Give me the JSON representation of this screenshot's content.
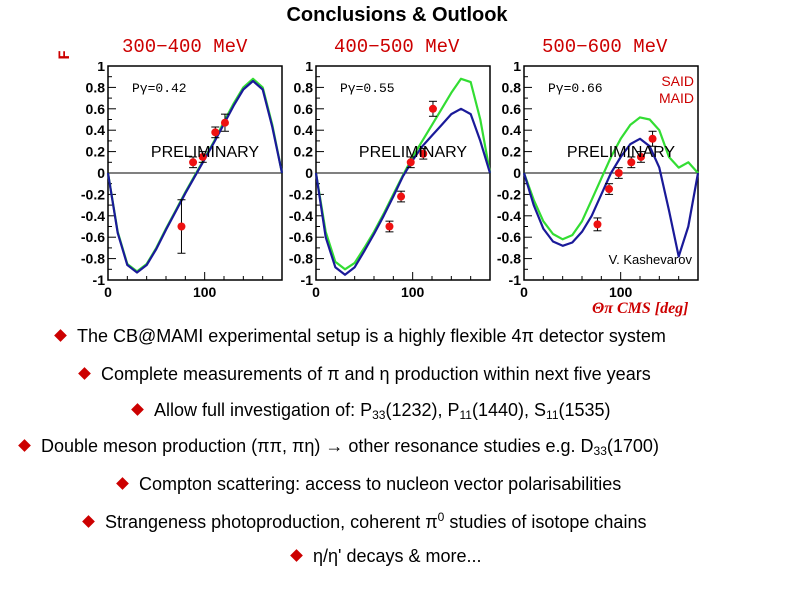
{
  "slide": {
    "title": "Conclusions & Outlook",
    "y_axis_letter": "F",
    "x_axis_title": "Θπ CMS [deg]",
    "panels": [
      {
        "title": "300−400 MeV",
        "p_label": "Pγ=0.42",
        "watermark": "PRELIMINARY"
      },
      {
        "title": "400−500 MeV",
        "p_label": "Pγ=0.55",
        "watermark": "PRELIMINARY"
      },
      {
        "title": "500−600 MeV",
        "p_label": "Pγ=0.66",
        "watermark": "PRELIMINARY"
      }
    ],
    "legend": {
      "said": "SAID",
      "maid": "MAID"
    },
    "credit": "V. Kashevarov",
    "bullets": {
      "b1": "The CB@MAMI experimental setup is a highly flexible 4π detector system",
      "b2": "Complete measurements of π and η production within next five years",
      "b3_pre": "Allow full investigation of: P",
      "b3_s1": "33",
      "b3_m1": "(1232), P",
      "b3_s2": "11",
      "b3_m2": "(1440), S",
      "b3_s3": "11",
      "b3_post": "(1535)",
      "b4_pre": "Double meson production (ππ, πη) → other resonance studies e.g. D",
      "b4_sub": "33",
      "b4_post": "(1700)",
      "b5": "Compton scattering: access to nucleon vector polarisabilities",
      "b6_pre": "Strangeness photoproduction, coherent π",
      "b6_sup": "0",
      "b6_post": " studies of isotope chains",
      "b7": "η/η' decays & more..."
    },
    "colors": {
      "accent": "#cc0000",
      "said": "#33dd33",
      "maid": "#1a1a99",
      "points": "#ee1111"
    }
  },
  "chart_data": [
    {
      "type": "line",
      "title": "300−400 MeV",
      "ylabel": "F",
      "xlim": [
        0,
        180
      ],
      "ylim": [
        -1,
        1
      ],
      "xticks": [
        0,
        100
      ],
      "yticks": [
        -1,
        -0.8,
        -0.6,
        -0.4,
        -0.2,
        0,
        0.2,
        0.4,
        0.6,
        0.8,
        1
      ],
      "series": [
        {
          "name": "SAID",
          "x": [
            0,
            10,
            20,
            30,
            40,
            50,
            60,
            70,
            80,
            90,
            100,
            110,
            120,
            130,
            140,
            150,
            160,
            170,
            180
          ],
          "y": [
            0,
            -0.55,
            -0.85,
            -0.92,
            -0.85,
            -0.7,
            -0.52,
            -0.35,
            -0.18,
            -0.02,
            0.14,
            0.3,
            0.48,
            0.65,
            0.8,
            0.88,
            0.8,
            0.45,
            0
          ]
        },
        {
          "name": "MAID",
          "x": [
            0,
            10,
            20,
            30,
            40,
            50,
            60,
            70,
            80,
            90,
            100,
            110,
            120,
            130,
            140,
            150,
            160,
            170,
            180
          ],
          "y": [
            0,
            -0.56,
            -0.86,
            -0.93,
            -0.86,
            -0.71,
            -0.53,
            -0.36,
            -0.19,
            -0.03,
            0.13,
            0.29,
            0.46,
            0.63,
            0.78,
            0.86,
            0.78,
            0.43,
            0
          ]
        },
        {
          "name": "data",
          "x": [
            76,
            88,
            98,
            111,
            121
          ],
          "y": [
            -0.5,
            0.1,
            0.15,
            0.38,
            0.47
          ],
          "err": [
            0.25,
            0.05,
            0.05,
            0.05,
            0.08
          ]
        }
      ]
    },
    {
      "type": "line",
      "title": "400−500 MeV",
      "ylabel": "F",
      "xlim": [
        0,
        180
      ],
      "ylim": [
        -1,
        1
      ],
      "xticks": [
        0,
        100
      ],
      "yticks": [
        -1,
        -0.8,
        -0.6,
        -0.4,
        -0.2,
        0,
        0.2,
        0.4,
        0.6,
        0.8,
        1
      ],
      "series": [
        {
          "name": "SAID",
          "x": [
            0,
            10,
            20,
            30,
            40,
            50,
            60,
            70,
            80,
            90,
            100,
            110,
            120,
            130,
            140,
            150,
            160,
            170,
            180
          ],
          "y": [
            0,
            -0.55,
            -0.83,
            -0.9,
            -0.84,
            -0.7,
            -0.55,
            -0.38,
            -0.2,
            -0.02,
            0.15,
            0.3,
            0.45,
            0.6,
            0.75,
            0.88,
            0.85,
            0.5,
            0
          ]
        },
        {
          "name": "MAID",
          "x": [
            0,
            10,
            20,
            30,
            40,
            50,
            60,
            70,
            80,
            90,
            100,
            110,
            120,
            130,
            140,
            150,
            160,
            170,
            180
          ],
          "y": [
            0,
            -0.6,
            -0.88,
            -0.95,
            -0.88,
            -0.73,
            -0.57,
            -0.4,
            -0.22,
            -0.03,
            0.12,
            0.25,
            0.35,
            0.45,
            0.55,
            0.6,
            0.55,
            0.3,
            0
          ]
        },
        {
          "name": "data",
          "x": [
            76,
            88,
            98,
            111,
            121
          ],
          "y": [
            -0.5,
            -0.22,
            0.1,
            0.18,
            0.6
          ],
          "err": [
            0.05,
            0.05,
            0.05,
            0.05,
            0.07
          ]
        }
      ]
    },
    {
      "type": "line",
      "title": "500−600 MeV",
      "ylabel": "F",
      "xlim": [
        0,
        180
      ],
      "ylim": [
        -1,
        1
      ],
      "xticks": [
        0,
        100
      ],
      "yticks": [
        -1,
        -0.8,
        -0.6,
        -0.4,
        -0.2,
        0,
        0.2,
        0.4,
        0.6,
        0.8,
        1
      ],
      "series": [
        {
          "name": "SAID",
          "x": [
            0,
            10,
            20,
            30,
            40,
            50,
            60,
            70,
            80,
            90,
            100,
            110,
            120,
            130,
            140,
            150,
            160,
            170,
            180
          ],
          "y": [
            0,
            -0.25,
            -0.45,
            -0.57,
            -0.62,
            -0.58,
            -0.45,
            -0.25,
            -0.05,
            0.15,
            0.32,
            0.45,
            0.52,
            0.5,
            0.4,
            0.15,
            0.05,
            0.1,
            0
          ]
        },
        {
          "name": "MAID",
          "x": [
            0,
            10,
            20,
            30,
            40,
            50,
            60,
            70,
            80,
            90,
            100,
            110,
            120,
            130,
            140,
            150,
            160,
            170,
            180
          ],
          "y": [
            0,
            -0.3,
            -0.52,
            -0.64,
            -0.68,
            -0.65,
            -0.55,
            -0.4,
            -0.2,
            0,
            0.15,
            0.27,
            0.32,
            0.25,
            0.05,
            -0.35,
            -0.78,
            -0.5,
            0
          ]
        },
        {
          "name": "data",
          "x": [
            76,
            88,
            98,
            111,
            121,
            133
          ],
          "y": [
            -0.48,
            -0.15,
            0.0,
            0.1,
            0.15,
            0.32
          ],
          "err": [
            0.06,
            0.05,
            0.05,
            0.05,
            0.05,
            0.07
          ]
        }
      ]
    }
  ]
}
